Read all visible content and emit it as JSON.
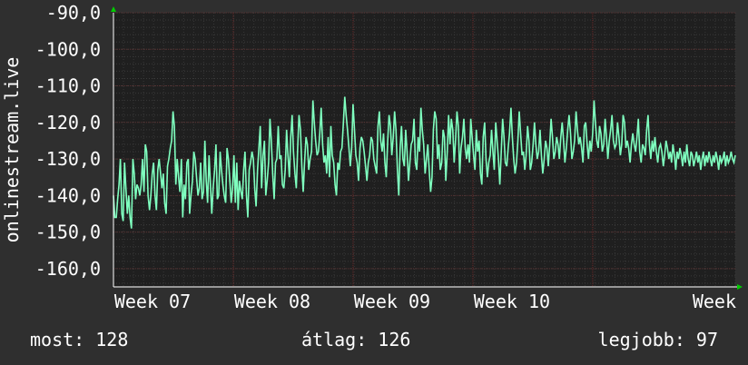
{
  "chart_data": {
    "type": "line",
    "ylabel": "onlinestream.live",
    "ylim": [
      -165,
      -90
    ],
    "yticks": [
      -90,
      -100,
      -110,
      -120,
      -130,
      -140,
      -150,
      -160
    ],
    "ytick_labels": [
      "-90,0",
      "-100,0",
      "-110,0",
      "-120,0",
      "-130,0",
      "-140,0",
      "-150,0",
      "-160,0"
    ],
    "xtick_labels": [
      "Week 07",
      "Week 08",
      "Week 09",
      "Week 10",
      "Week"
    ],
    "xlim": [
      0,
      436
    ],
    "xticks": [
      0,
      84,
      168,
      252,
      336
    ],
    "grid": true,
    "colors": {
      "background": "#2f2f2f",
      "plot_bg": "#1f1f1f",
      "line": "#7fffbf",
      "grid": "#3c3c3c",
      "vgrid": "#5a3030",
      "arrow": "#00cc00"
    },
    "series": [
      {
        "values": [
          -140,
          -146,
          -146,
          -141,
          -137,
          -130,
          -145,
          -147,
          -131,
          -138,
          -145,
          -140,
          -146,
          -149,
          -130,
          -134,
          -141,
          -137,
          -138,
          -140,
          -137,
          -130,
          -139,
          -126,
          -128,
          -140,
          -144,
          -140,
          -134,
          -131,
          -140,
          -144,
          -133,
          -130,
          -134,
          -138,
          -134,
          -142,
          -145,
          -132,
          -130,
          -127,
          -125,
          -117,
          -121,
          -137,
          -130,
          -135,
          -139,
          -130,
          -146,
          -137,
          -141,
          -131,
          -130,
          -145,
          -140,
          -136,
          -128,
          -130,
          -135,
          -140,
          -138,
          -131,
          -141,
          -139,
          -125,
          -136,
          -142,
          -129,
          -137,
          -145,
          -138,
          -133,
          -126,
          -141,
          -140,
          -128,
          -133,
          -137,
          -140,
          -142,
          -127,
          -130,
          -136,
          -142,
          -138,
          -129,
          -142,
          -131,
          -144,
          -136,
          -139,
          -141,
          -133,
          -128,
          -140,
          -146,
          -133,
          -131,
          -128,
          -130,
          -138,
          -143,
          -133,
          -127,
          -121,
          -138,
          -129,
          -125,
          -140,
          -136,
          -131,
          -119,
          -125,
          -134,
          -141,
          -131,
          -130,
          -121,
          -130,
          -129,
          -137,
          -138,
          -133,
          -122,
          -129,
          -135,
          -124,
          -118,
          -128,
          -134,
          -138,
          -127,
          -118,
          -122,
          -132,
          -139,
          -131,
          -124,
          -126,
          -133,
          -130,
          -128,
          -114,
          -120,
          -125,
          -129,
          -128,
          -123,
          -116,
          -126,
          -131,
          -129,
          -134,
          -124,
          -135,
          -121,
          -129,
          -131,
          -137,
          -140,
          -131,
          -133,
          -128,
          -127,
          -120,
          -113,
          -118,
          -122,
          -127,
          -132,
          -127,
          -115,
          -122,
          -129,
          -131,
          -136,
          -127,
          -124,
          -125,
          -128,
          -132,
          -136,
          -131,
          -129,
          -124,
          -125,
          -130,
          -132,
          -134,
          -121,
          -117,
          -125,
          -128,
          -123,
          -131,
          -135,
          -125,
          -118,
          -121,
          -129,
          -124,
          -117,
          -122,
          -133,
          -140,
          -127,
          -121,
          -130,
          -132,
          -122,
          -128,
          -136,
          -131,
          -126,
          -125,
          -119,
          -131,
          -133,
          -124,
          -128,
          -116,
          -122,
          -126,
          -134,
          -130,
          -126,
          -133,
          -139,
          -135,
          -122,
          -117,
          -119,
          -130,
          -126,
          -133,
          -131,
          -122,
          -124,
          -136,
          -128,
          -118,
          -126,
          -119,
          -122,
          -131,
          -125,
          -117,
          -121,
          -134,
          -127,
          -124,
          -119,
          -127,
          -130,
          -126,
          -131,
          -119,
          -124,
          -129,
          -133,
          -122,
          -128,
          -125,
          -134,
          -137,
          -124,
          -120,
          -130,
          -135,
          -131,
          -129,
          -122,
          -128,
          -133,
          -120,
          -125,
          -130,
          -137,
          -128,
          -119,
          -124,
          -131,
          -132,
          -127,
          -123,
          -116,
          -124,
          -130,
          -134,
          -131,
          -125,
          -117,
          -123,
          -129,
          -128,
          -133,
          -129,
          -121,
          -125,
          -133,
          -131,
          -126,
          -120,
          -126,
          -130,
          -128,
          -122,
          -129,
          -134,
          -130,
          -125,
          -127,
          -132,
          -126,
          -119,
          -124,
          -130,
          -128,
          -124,
          -126,
          -130,
          -124,
          -120,
          -125,
          -131,
          -127,
          -122,
          -118,
          -123,
          -130,
          -128,
          -125,
          -117,
          -122,
          -126,
          -124,
          -127,
          -131,
          -121,
          -120,
          -126,
          -130,
          -125,
          -128,
          -123,
          -114,
          -120,
          -125,
          -127,
          -121,
          -123,
          -128,
          -126,
          -119,
          -124,
          -130,
          -125,
          -122,
          -118,
          -125,
          -127,
          -126,
          -120,
          -124,
          -129,
          -126,
          -118,
          -120,
          -127,
          -125,
          -127,
          -131,
          -126,
          -123,
          -126,
          -128,
          -124,
          -119,
          -128,
          -131,
          -126,
          -127,
          -129,
          -122,
          -118,
          -126,
          -130,
          -125,
          -128,
          -124,
          -128,
          -131,
          -127,
          -126,
          -128,
          -132,
          -129,
          -125,
          -127,
          -130,
          -128,
          -131,
          -126,
          -129,
          -133,
          -128,
          -130,
          -127,
          -129,
          -132,
          -128,
          -131,
          -126,
          -130,
          -132,
          -128,
          -129,
          -132,
          -130,
          -128,
          -131,
          -129,
          -133,
          -130,
          -128,
          -132,
          -129,
          -131,
          -128,
          -130,
          -132,
          -129,
          -131,
          -128,
          -130,
          -133,
          -129,
          -131,
          -130,
          -128,
          -132,
          -129,
          -131,
          -130,
          -128,
          -130,
          -131,
          -129
        ]
      }
    ]
  },
  "footer": {
    "now": "most: 128",
    "avg": "átlag: 126",
    "best": "legjobb: 97"
  }
}
